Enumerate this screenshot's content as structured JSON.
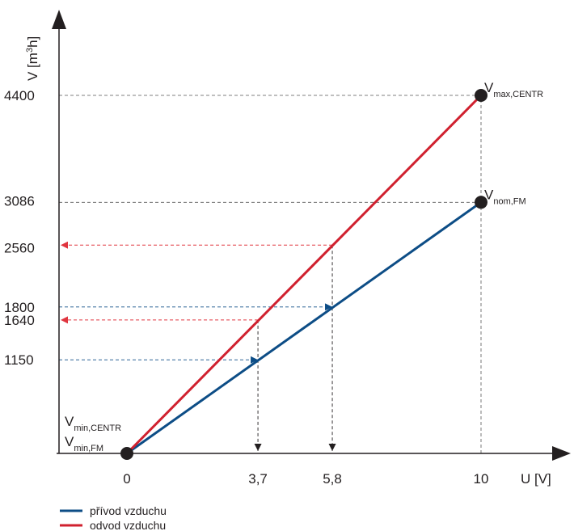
{
  "chart_data": {
    "type": "line",
    "xlabel": "U [V]",
    "ylabel": {
      "prefix": "V [m",
      "sup": "3",
      "suffix": "h]"
    },
    "xlim": [
      0,
      10
    ],
    "ylim": [
      0,
      4400
    ],
    "grid": false,
    "legend_position": "bottom-left",
    "x_ticks": [
      {
        "value": 0,
        "label": "0"
      },
      {
        "value": 3.7,
        "label": "3,7"
      },
      {
        "value": 5.8,
        "label": "5,8"
      },
      {
        "value": 10,
        "label": "10"
      }
    ],
    "y_ticks": [
      {
        "value": 1150,
        "label": "1150"
      },
      {
        "value": 1640,
        "label": "1640"
      },
      {
        "value": 1800,
        "label": "1800"
      },
      {
        "value": 2560,
        "label": "2560"
      },
      {
        "value": 3086,
        "label": "3086"
      },
      {
        "value": 4400,
        "label": "4400"
      }
    ],
    "series": [
      {
        "name": "přívod vzduchu",
        "color": "#0d4d86",
        "x": [
          0,
          10
        ],
        "y": [
          0,
          3086
        ]
      },
      {
        "name": "odvod vzduchu",
        "color": "#d0212f",
        "x": [
          0,
          10
        ],
        "y": [
          0,
          4400
        ]
      }
    ],
    "points": [
      {
        "x": 0,
        "y": 0
      },
      {
        "x": 10,
        "y": 3086
      },
      {
        "x": 10,
        "y": 4400
      }
    ],
    "point_labels": [
      {
        "main": "V",
        "sub": "max,CENTR",
        "anchor": [
          10,
          4400
        ]
      },
      {
        "main": "V",
        "sub": "nom,FM",
        "anchor": [
          10,
          3086
        ]
      },
      {
        "main": "V",
        "sub": "min,CENTR",
        "anchor": [
          0,
          0
        ],
        "slot": "upper"
      },
      {
        "main": "V",
        "sub": "min,FM",
        "anchor": [
          0,
          0
        ],
        "slot": "lower"
      }
    ],
    "reference_lines": [
      {
        "kind": "horizontal",
        "y": 4400,
        "x_end": 10,
        "color": "#555555"
      },
      {
        "kind": "horizontal",
        "y": 3086,
        "x_end": 10,
        "color": "#555555"
      },
      {
        "kind": "vertical",
        "x": 10,
        "y_end": 4400,
        "color": "#555555"
      }
    ],
    "arrows": [
      {
        "from": [
          0,
          1150
        ],
        "to": [
          3.7,
          1150
        ],
        "color": "#0d4d86"
      },
      {
        "from": [
          0,
          1800
        ],
        "to": [
          5.8,
          1800
        ],
        "color": "#0d4d86"
      },
      {
        "from": [
          3.7,
          1640
        ],
        "to": [
          0,
          1640
        ],
        "color": "#e0353f"
      },
      {
        "from": [
          5.8,
          2560
        ],
        "to": [
          0,
          2560
        ],
        "color": "#e0353f"
      },
      {
        "from": [
          3.7,
          1640
        ],
        "to": [
          3.7,
          0
        ],
        "color": "#231f20"
      },
      {
        "from": [
          5.8,
          2560
        ],
        "to": [
          5.8,
          0
        ],
        "color": "#231f20"
      }
    ]
  }
}
